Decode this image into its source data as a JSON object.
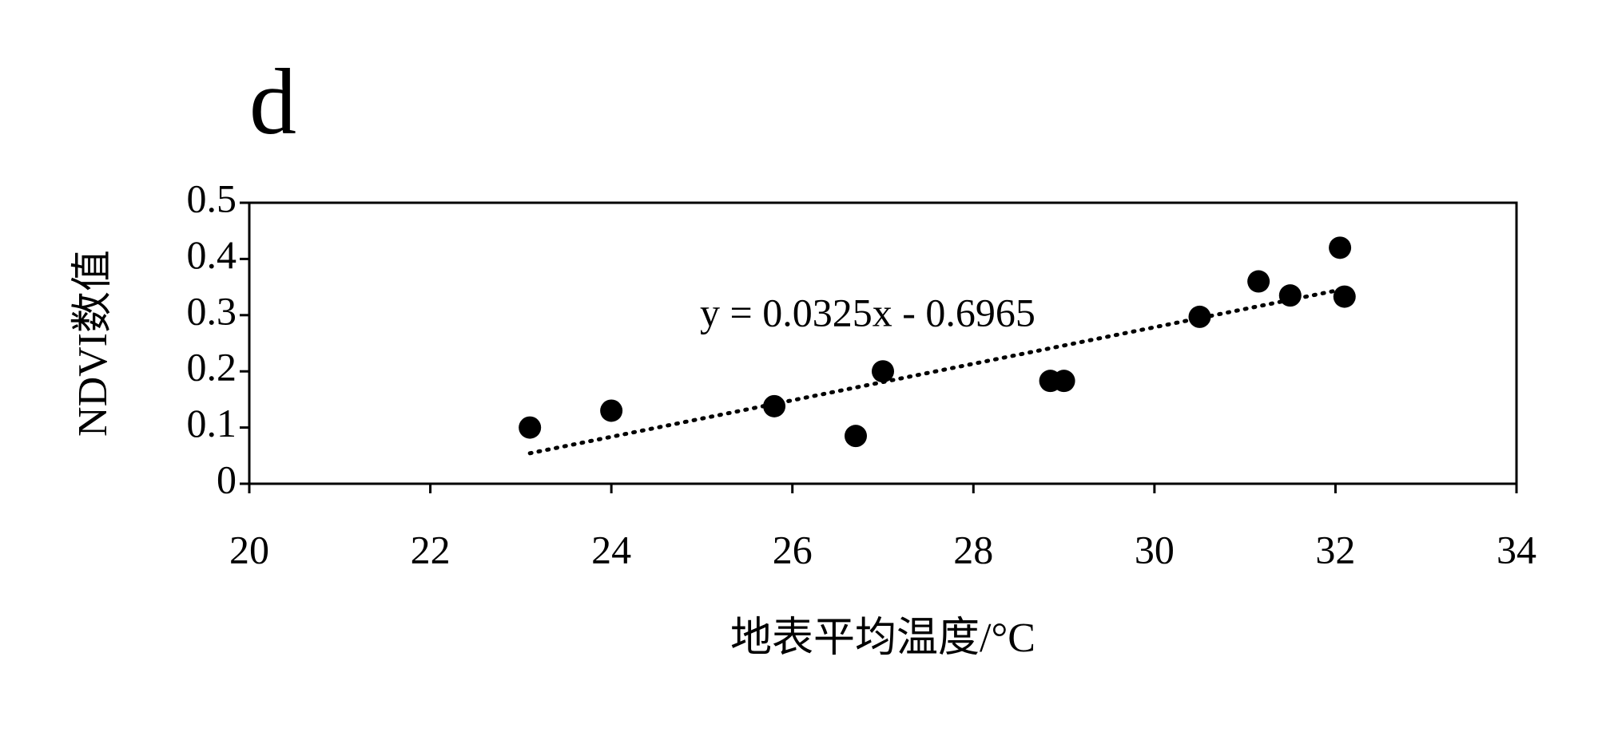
{
  "chart_data": {
    "type": "scatter",
    "panel_label": "d",
    "xlabel": "地表平均温度/°C",
    "ylabel": "NDVI数值",
    "x": [
      23.1,
      24.0,
      25.8,
      26.7,
      27.0,
      28.85,
      29.0,
      30.5,
      31.15,
      31.5,
      32.05,
      32.1
    ],
    "series": [
      {
        "name": "NDVI",
        "color": "#000000",
        "values": [
          0.1,
          0.13,
          0.138,
          0.085,
          0.2,
          0.183,
          0.183,
          0.297,
          0.36,
          0.335,
          0.42,
          0.333
        ]
      }
    ],
    "trendline": {
      "label": "y = 0.0325x - 0.6965",
      "slope": 0.0325,
      "intercept": -0.6965
    },
    "xlim": [
      20,
      34
    ],
    "xticks": [
      20,
      22,
      24,
      26,
      28,
      30,
      32,
      34
    ],
    "ylim": [
      0,
      0.5
    ],
    "yticks": [
      0,
      0.1,
      0.2,
      0.3,
      0.4,
      0.5
    ],
    "grid": false
  }
}
